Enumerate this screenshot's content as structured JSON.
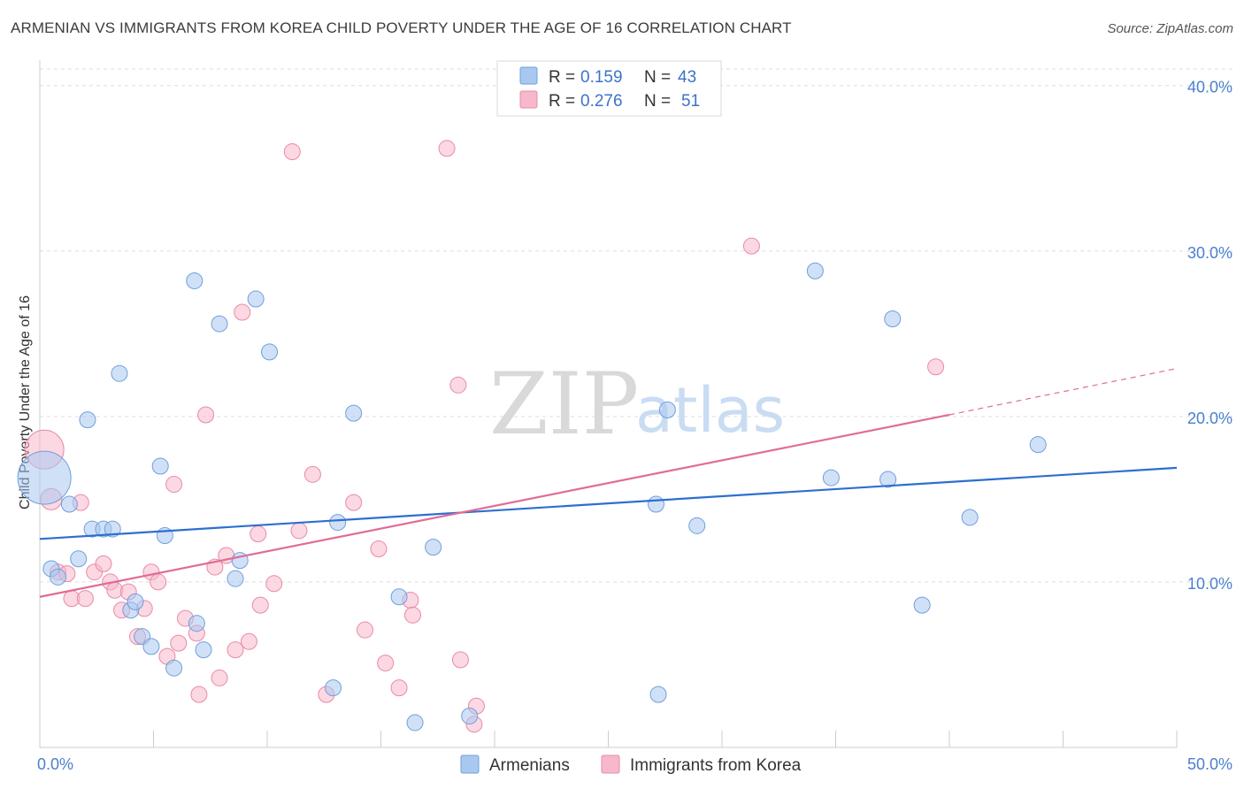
{
  "header": {
    "title": "ARMENIAN VS IMMIGRANTS FROM KOREA CHILD POVERTY UNDER THE AGE OF 16 CORRELATION CHART",
    "source": "Source: ZipAtlas.com"
  },
  "watermark": {
    "zip": "ZIP",
    "atlas": "atlas"
  },
  "legend": {
    "rows": [
      {
        "r_label": "R =",
        "r_value": "0.159",
        "n_label": "N =",
        "n_value": "43",
        "color": "#a9c8f0"
      },
      {
        "r_label": "R =",
        "r_value": "0.276",
        "n_label": "N =",
        "n_value": "51",
        "color": "#f7b8cb"
      }
    ]
  },
  "bottom_legend": [
    {
      "label": "Armenians",
      "color": "#a9c8f0"
    },
    {
      "label": "Immigrants from Korea",
      "color": "#f7b8cb"
    }
  ],
  "chart_data": {
    "type": "scatter",
    "title": "ARMENIAN VS IMMIGRANTS FROM KOREA CHILD POVERTY UNDER THE AGE OF 16 CORRELATION CHART",
    "xlabel": "",
    "ylabel": "Child Poverty Under the Age of 16",
    "xlim": [
      0,
      50
    ],
    "ylim": [
      0,
      41
    ],
    "x_tick_labels": [
      {
        "value": 0,
        "label": "0.0%"
      },
      {
        "value": 50,
        "label": "50.0%"
      }
    ],
    "y_tick_labels": [
      {
        "value": 10,
        "label": "10.0%"
      },
      {
        "value": 20,
        "label": "20.0%"
      },
      {
        "value": 30,
        "label": "30.0%"
      },
      {
        "value": 40,
        "label": "40.0%"
      }
    ],
    "grid": true,
    "legend_position": "top-center",
    "series": [
      {
        "name": "Armenians",
        "color": "#a9c8f0",
        "stroke": "#6f9fdb",
        "line_color": "#2e6fcf",
        "trend": {
          "x0": 0,
          "y0": 12.6,
          "x1": 50,
          "y1": 16.9
        },
        "points": [
          [
            0.2,
            16.3,
            30
          ],
          [
            0.5,
            10.8,
            9
          ],
          [
            0.8,
            10.3,
            9
          ],
          [
            1.3,
            14.7,
            9
          ],
          [
            1.7,
            11.4,
            9
          ],
          [
            2.1,
            19.8,
            9
          ],
          [
            2.3,
            13.2,
            9
          ],
          [
            2.8,
            13.2,
            9
          ],
          [
            3.2,
            13.2,
            9
          ],
          [
            3.5,
            22.6,
            9
          ],
          [
            4.0,
            8.3,
            9
          ],
          [
            4.2,
            8.8,
            9
          ],
          [
            4.5,
            6.7,
            9
          ],
          [
            4.9,
            6.1,
            9
          ],
          [
            5.3,
            17.0,
            9
          ],
          [
            5.5,
            12.8,
            9
          ],
          [
            5.9,
            4.8,
            9
          ],
          [
            6.8,
            28.2,
            9
          ],
          [
            6.9,
            7.5,
            9
          ],
          [
            7.2,
            5.9,
            9
          ],
          [
            7.9,
            25.6,
            9
          ],
          [
            8.6,
            10.2,
            9
          ],
          [
            8.8,
            11.3,
            9
          ],
          [
            9.5,
            27.1,
            9
          ],
          [
            10.1,
            23.9,
            9
          ],
          [
            12.9,
            3.6,
            9
          ],
          [
            13.1,
            13.6,
            9
          ],
          [
            13.8,
            20.2,
            9
          ],
          [
            15.8,
            9.1,
            9
          ],
          [
            16.5,
            1.5,
            9
          ],
          [
            17.3,
            12.1,
            9
          ],
          [
            18.9,
            1.9,
            9
          ],
          [
            27.1,
            14.7,
            9
          ],
          [
            27.2,
            3.2,
            9
          ],
          [
            27.6,
            20.4,
            9
          ],
          [
            28.9,
            13.4,
            9
          ],
          [
            34.1,
            28.8,
            9
          ],
          [
            34.8,
            16.3,
            9
          ],
          [
            37.3,
            16.2,
            9
          ],
          [
            37.5,
            25.9,
            9
          ],
          [
            38.8,
            8.6,
            9
          ],
          [
            40.9,
            13.9,
            9
          ],
          [
            43.9,
            18.3,
            9
          ]
        ]
      },
      {
        "name": "Immigrants from Korea",
        "color": "#f7b8cb",
        "stroke": "#e88aa6",
        "line_color": "#e06c97",
        "trend": {
          "x0": 0,
          "y0": 9.1,
          "x1": 40,
          "y1": 20.1
        },
        "trend_dashed": {
          "x0": 40,
          "y0": 20.1,
          "x1": 50,
          "y1": 22.9
        },
        "points": [
          [
            0.2,
            18.0,
            22
          ],
          [
            0.5,
            15.0,
            12
          ],
          [
            0.8,
            10.6,
            9
          ],
          [
            1.2,
            10.5,
            9
          ],
          [
            1.4,
            9.0,
            9
          ],
          [
            1.8,
            14.8,
            9
          ],
          [
            2.0,
            9.0,
            9
          ],
          [
            2.4,
            10.6,
            9
          ],
          [
            2.8,
            11.1,
            9
          ],
          [
            3.1,
            10.0,
            9
          ],
          [
            3.3,
            9.5,
            9
          ],
          [
            3.6,
            8.3,
            9
          ],
          [
            3.9,
            9.4,
            9
          ],
          [
            4.3,
            6.7,
            9
          ],
          [
            4.6,
            8.4,
            9
          ],
          [
            4.9,
            10.6,
            9
          ],
          [
            5.2,
            10.0,
            9
          ],
          [
            5.6,
            5.5,
            9
          ],
          [
            5.9,
            15.9,
            9
          ],
          [
            6.1,
            6.3,
            9
          ],
          [
            6.4,
            7.8,
            9
          ],
          [
            6.9,
            6.9,
            9
          ],
          [
            7.0,
            3.2,
            9
          ],
          [
            7.3,
            20.1,
            9
          ],
          [
            7.7,
            10.9,
            9
          ],
          [
            7.9,
            4.2,
            9
          ],
          [
            8.2,
            11.6,
            9
          ],
          [
            8.6,
            5.9,
            9
          ],
          [
            8.9,
            26.3,
            9
          ],
          [
            9.2,
            6.4,
            9
          ],
          [
            9.6,
            12.9,
            9
          ],
          [
            9.7,
            8.6,
            9
          ],
          [
            10.3,
            9.9,
            9
          ],
          [
            11.1,
            36.0,
            9
          ],
          [
            11.4,
            13.1,
            9
          ],
          [
            12.0,
            16.5,
            9
          ],
          [
            12.6,
            3.2,
            9
          ],
          [
            13.8,
            14.8,
            9
          ],
          [
            14.3,
            7.1,
            9
          ],
          [
            14.9,
            12.0,
            9
          ],
          [
            15.2,
            5.1,
            9
          ],
          [
            15.8,
            3.6,
            9
          ],
          [
            16.3,
            8.9,
            9
          ],
          [
            16.4,
            8.0,
            9
          ],
          [
            17.9,
            36.2,
            9
          ],
          [
            18.4,
            21.9,
            9
          ],
          [
            18.5,
            5.3,
            9
          ],
          [
            19.1,
            1.4,
            9
          ],
          [
            19.2,
            2.5,
            9
          ],
          [
            31.3,
            30.3,
            9
          ],
          [
            39.4,
            23.0,
            9
          ]
        ]
      }
    ]
  }
}
